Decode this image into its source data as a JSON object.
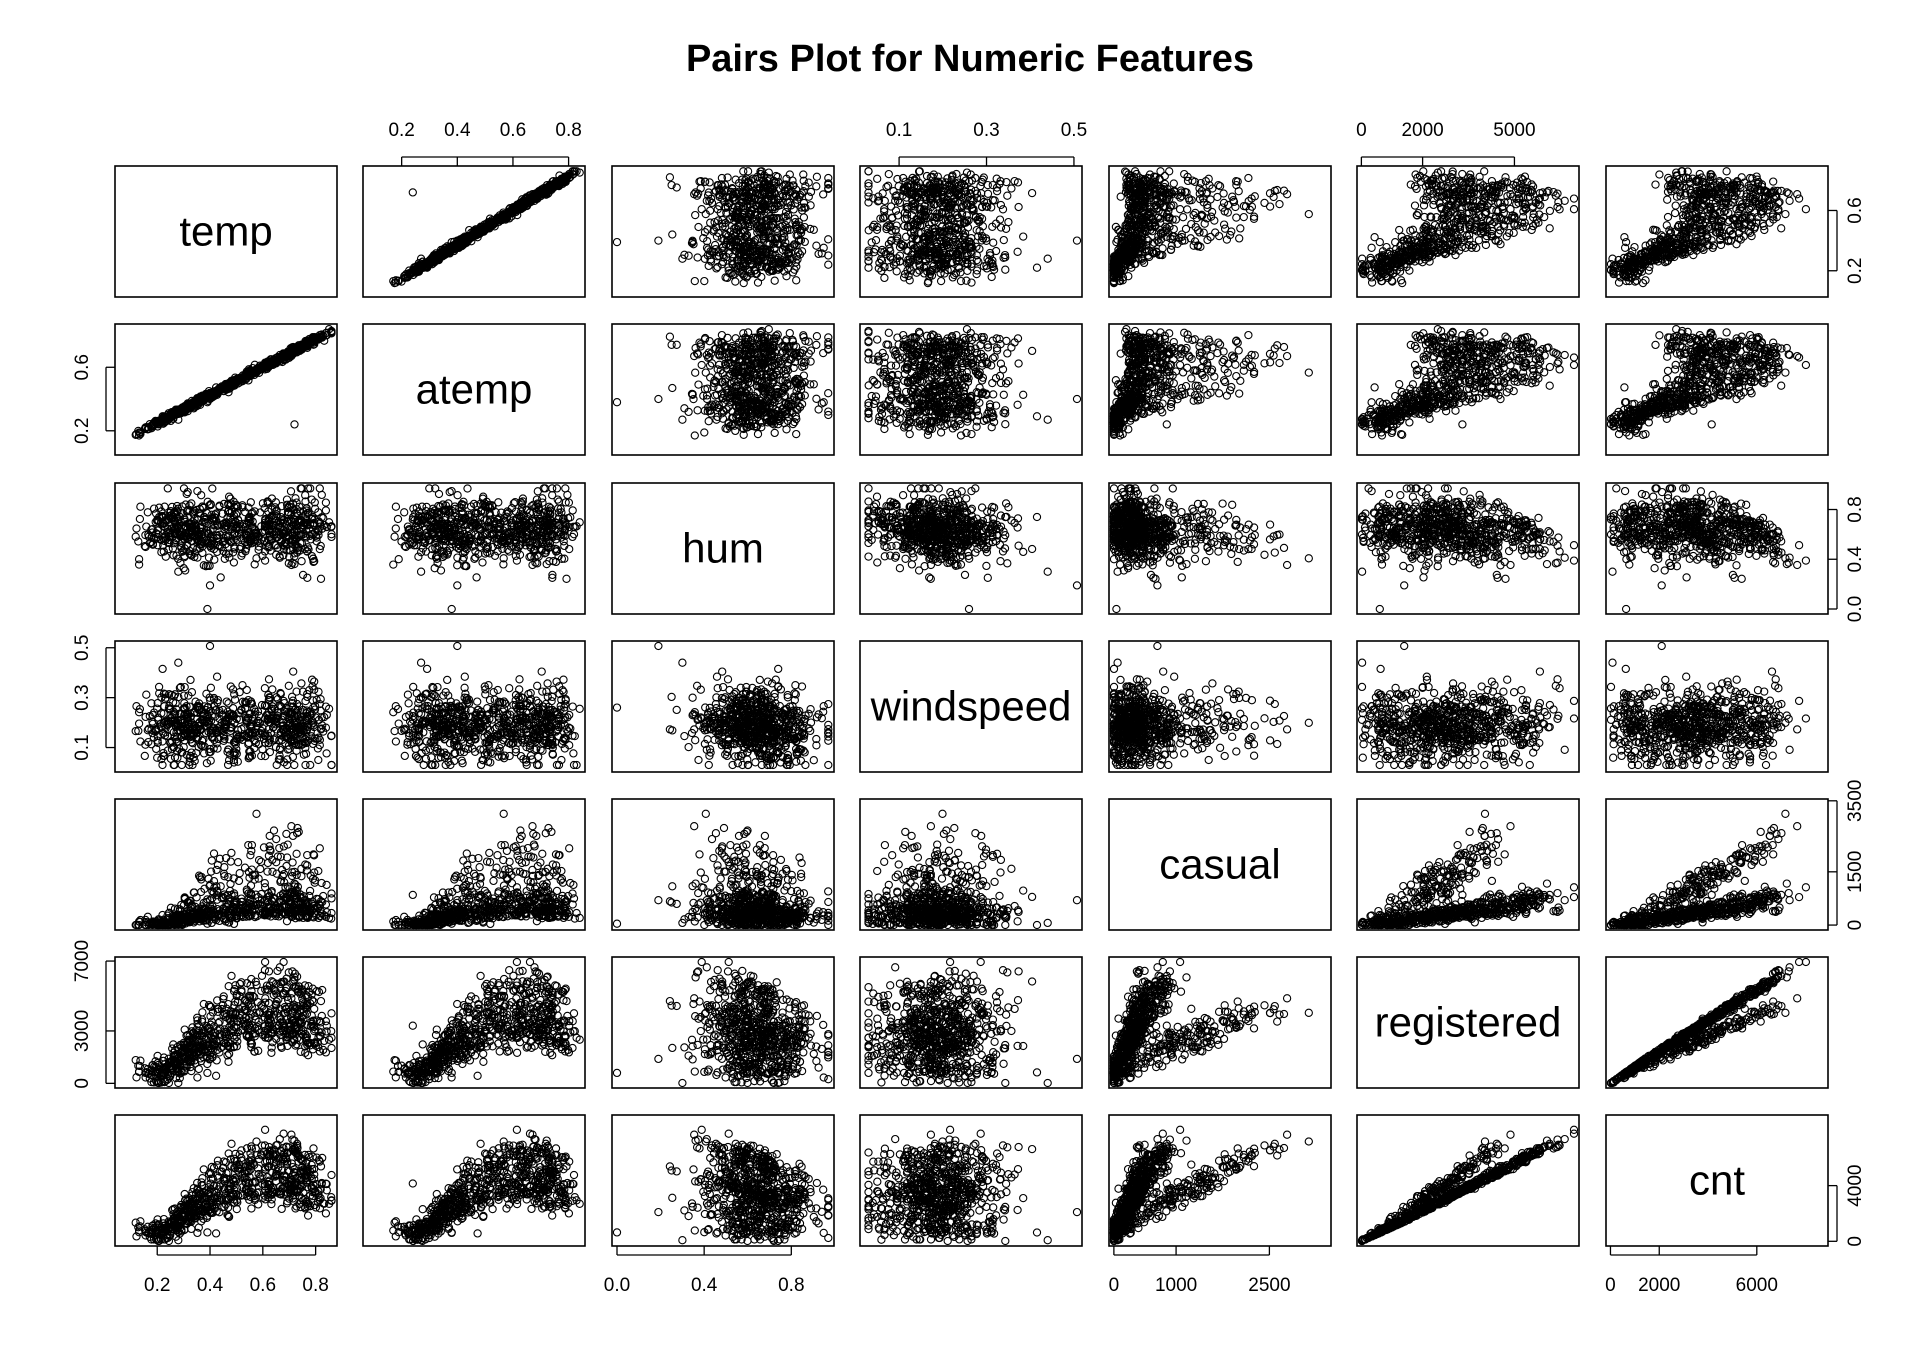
{
  "chart_data": {
    "type": "scatter",
    "title": "Pairs Plot for Numeric Features",
    "variables": [
      "temp",
      "atemp",
      "hum",
      "windspeed",
      "casual",
      "registered",
      "cnt"
    ],
    "ranges": {
      "temp": [
        0.059,
        0.862
      ],
      "atemp": [
        0.079,
        0.841
      ],
      "hum": [
        0.0,
        0.973
      ],
      "windspeed": [
        0.022,
        0.507
      ],
      "casual": [
        2,
        3410
      ],
      "registered": [
        20,
        6946
      ],
      "cnt": [
        22,
        8714
      ]
    },
    "axis_ticks": {
      "top": [
        {
          "variable": "atemp",
          "labels": [
            "0.2",
            "0.4",
            "0.6",
            "0.8"
          ]
        },
        {
          "variable": "windspeed",
          "labels": [
            "0.1",
            "0.3",
            "0.5"
          ]
        },
        {
          "variable": "registered",
          "labels": [
            "0",
            "2000",
            "5000"
          ]
        }
      ],
      "bottom": [
        {
          "variable": "temp",
          "labels": [
            "0.2",
            "0.4",
            "0.6",
            "0.8"
          ]
        },
        {
          "variable": "hum",
          "labels": [
            "0.0",
            "0.4",
            "0.8"
          ]
        },
        {
          "variable": "casual",
          "labels": [
            "0",
            "1000",
            "2500"
          ]
        },
        {
          "variable": "cnt",
          "labels": [
            "0",
            "2000",
            "6000"
          ]
        }
      ],
      "left": [
        {
          "variable": "atemp",
          "labels": [
            "0.2",
            "0.6"
          ]
        },
        {
          "variable": "windspeed",
          "labels": [
            "0.1",
            "0.3",
            "0.5"
          ]
        },
        {
          "variable": "registered",
          "labels": [
            "0",
            "3000",
            "7000"
          ]
        }
      ],
      "right": [
        {
          "variable": "temp",
          "labels": [
            "0.2",
            "0.6"
          ]
        },
        {
          "variable": "hum",
          "labels": [
            "0.0",
            "0.4",
            "0.8"
          ]
        },
        {
          "variable": "casual",
          "labels": [
            "0",
            "1500",
            "3500"
          ]
        },
        {
          "variable": "cnt",
          "labels": [
            "0",
            "4000"
          ]
        }
      ]
    },
    "points_per_panel": 731,
    "marker": "open-circle",
    "grid": false,
    "legend": "none"
  }
}
